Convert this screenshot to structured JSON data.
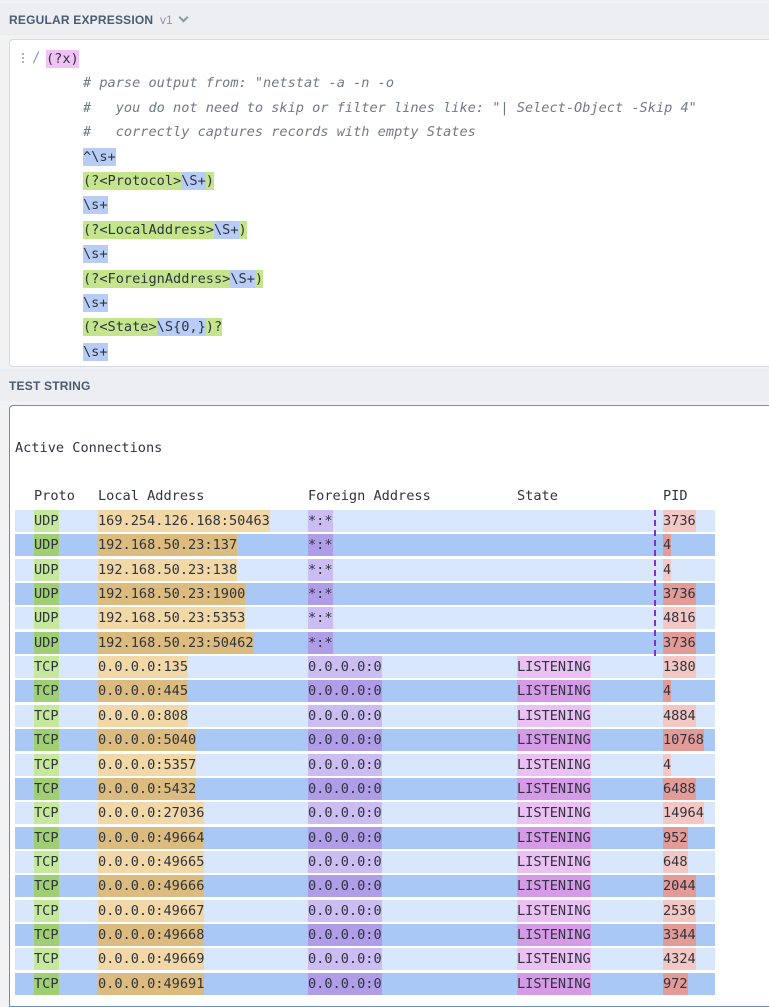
{
  "regex_section": {
    "title": "REGULAR EXPRESSION",
    "version": "v1"
  },
  "regex": {
    "delimiter": "/",
    "lines": [
      [
        {
          "t": "(?x)",
          "k": "flag"
        }
      ],
      [
        {
          "t": "# parse output from: \"netstat -a -n -o",
          "k": "cmt"
        }
      ],
      [
        {
          "t": "#   you do not need to skip or filter lines like: \"| Select-Object -Skip 4\"",
          "k": "cmt"
        }
      ],
      [
        {
          "t": "#   correctly captures records with empty States",
          "k": "cmt"
        }
      ],
      [
        {
          "t": "^\\s+",
          "k": "esc"
        }
      ],
      [
        {
          "t": "(?<Protocol>",
          "k": "grp"
        },
        {
          "t": "\\S+",
          "k": "esc"
        },
        {
          "t": ")",
          "k": "grp"
        }
      ],
      [
        {
          "t": "\\s+",
          "k": "esc"
        }
      ],
      [
        {
          "t": "(?<LocalAddress>",
          "k": "grp"
        },
        {
          "t": "\\S+",
          "k": "esc"
        },
        {
          "t": ")",
          "k": "grp"
        }
      ],
      [
        {
          "t": "\\s+",
          "k": "esc"
        }
      ],
      [
        {
          "t": "(?<ForeignAddress>",
          "k": "grp"
        },
        {
          "t": "\\S+",
          "k": "esc"
        },
        {
          "t": ")",
          "k": "grp"
        }
      ],
      [
        {
          "t": "\\s+",
          "k": "esc"
        }
      ],
      [
        {
          "t": "(?<State>",
          "k": "grp"
        },
        {
          "t": "\\S{0,}",
          "k": "esc"
        },
        {
          "t": ")?",
          "k": "grp"
        }
      ],
      [
        {
          "t": "\\s+",
          "k": "esc"
        }
      ]
    ]
  },
  "test_section": {
    "title": "TEST STRING"
  },
  "test": {
    "heading": "Active Connections",
    "columns": {
      "proto": "Proto",
      "local": "Local Address",
      "foreign": "Foreign Address",
      "state": "State",
      "pid": "PID"
    },
    "rows": [
      {
        "proto": "UDP",
        "local": "169.254.126.168:50463",
        "foreign": "*:*",
        "state": "",
        "pid": "3736"
      },
      {
        "proto": "UDP",
        "local": "192.168.50.23:137",
        "foreign": "*:*",
        "state": "",
        "pid": "4"
      },
      {
        "proto": "UDP",
        "local": "192.168.50.23:138",
        "foreign": "*:*",
        "state": "",
        "pid": "4"
      },
      {
        "proto": "UDP",
        "local": "192.168.50.23:1900",
        "foreign": "*:*",
        "state": "",
        "pid": "3736"
      },
      {
        "proto": "UDP",
        "local": "192.168.50.23:5353",
        "foreign": "*:*",
        "state": "",
        "pid": "4816"
      },
      {
        "proto": "UDP",
        "local": "192.168.50.23:50462",
        "foreign": "*:*",
        "state": "",
        "pid": "3736"
      },
      {
        "proto": "TCP",
        "local": "0.0.0.0:135",
        "foreign": "0.0.0.0:0",
        "state": "LISTENING",
        "pid": "1380"
      },
      {
        "proto": "TCP",
        "local": "0.0.0.0:445",
        "foreign": "0.0.0.0:0",
        "state": "LISTENING",
        "pid": "4"
      },
      {
        "proto": "TCP",
        "local": "0.0.0.0:808",
        "foreign": "0.0.0.0:0",
        "state": "LISTENING",
        "pid": "4884"
      },
      {
        "proto": "TCP",
        "local": "0.0.0.0:5040",
        "foreign": "0.0.0.0:0",
        "state": "LISTENING",
        "pid": "10768"
      },
      {
        "proto": "TCP",
        "local": "0.0.0.0:5357",
        "foreign": "0.0.0.0:0",
        "state": "LISTENING",
        "pid": "4"
      },
      {
        "proto": "TCP",
        "local": "0.0.0.0:5432",
        "foreign": "0.0.0.0:0",
        "state": "LISTENING",
        "pid": "6488"
      },
      {
        "proto": "TCP",
        "local": "0.0.0.0:27036",
        "foreign": "0.0.0.0:0",
        "state": "LISTENING",
        "pid": "14964"
      },
      {
        "proto": "TCP",
        "local": "0.0.0.0:49664",
        "foreign": "0.0.0.0:0",
        "state": "LISTENING",
        "pid": "952"
      },
      {
        "proto": "TCP",
        "local": "0.0.0.0:49665",
        "foreign": "0.0.0.0:0",
        "state": "LISTENING",
        "pid": "648"
      },
      {
        "proto": "TCP",
        "local": "0.0.0.0:49666",
        "foreign": "0.0.0.0:0",
        "state": "LISTENING",
        "pid": "2044"
      },
      {
        "proto": "TCP",
        "local": "0.0.0.0:49667",
        "foreign": "0.0.0.0:0",
        "state": "LISTENING",
        "pid": "2536"
      },
      {
        "proto": "TCP",
        "local": "0.0.0.0:49668",
        "foreign": "0.0.0.0:0",
        "state": "LISTENING",
        "pid": "3344"
      },
      {
        "proto": "TCP",
        "local": "0.0.0.0:49669",
        "foreign": "0.0.0.0:0",
        "state": "LISTENING",
        "pid": "4324"
      },
      {
        "proto": "TCP",
        "local": "0.0.0.0:49691",
        "foreign": "0.0.0.0:0",
        "state": "LISTENING",
        "pid": "972"
      }
    ]
  },
  "colors": {
    "match_light": "#d8e7fb",
    "match_dark": "#a9c8f5",
    "proto_light": "#c6e89c",
    "proto_dark": "#9fcf72",
    "local_light": "#f1d8a6",
    "local_dark": "#dcbb7e",
    "foreign_light": "#cbbdf2",
    "foreign_dark": "#b09de8",
    "state_light": "#ebc1f3",
    "state_dark": "#d69be6",
    "pid_light": "#f3c7c3",
    "pid_dark": "#e29b96"
  }
}
